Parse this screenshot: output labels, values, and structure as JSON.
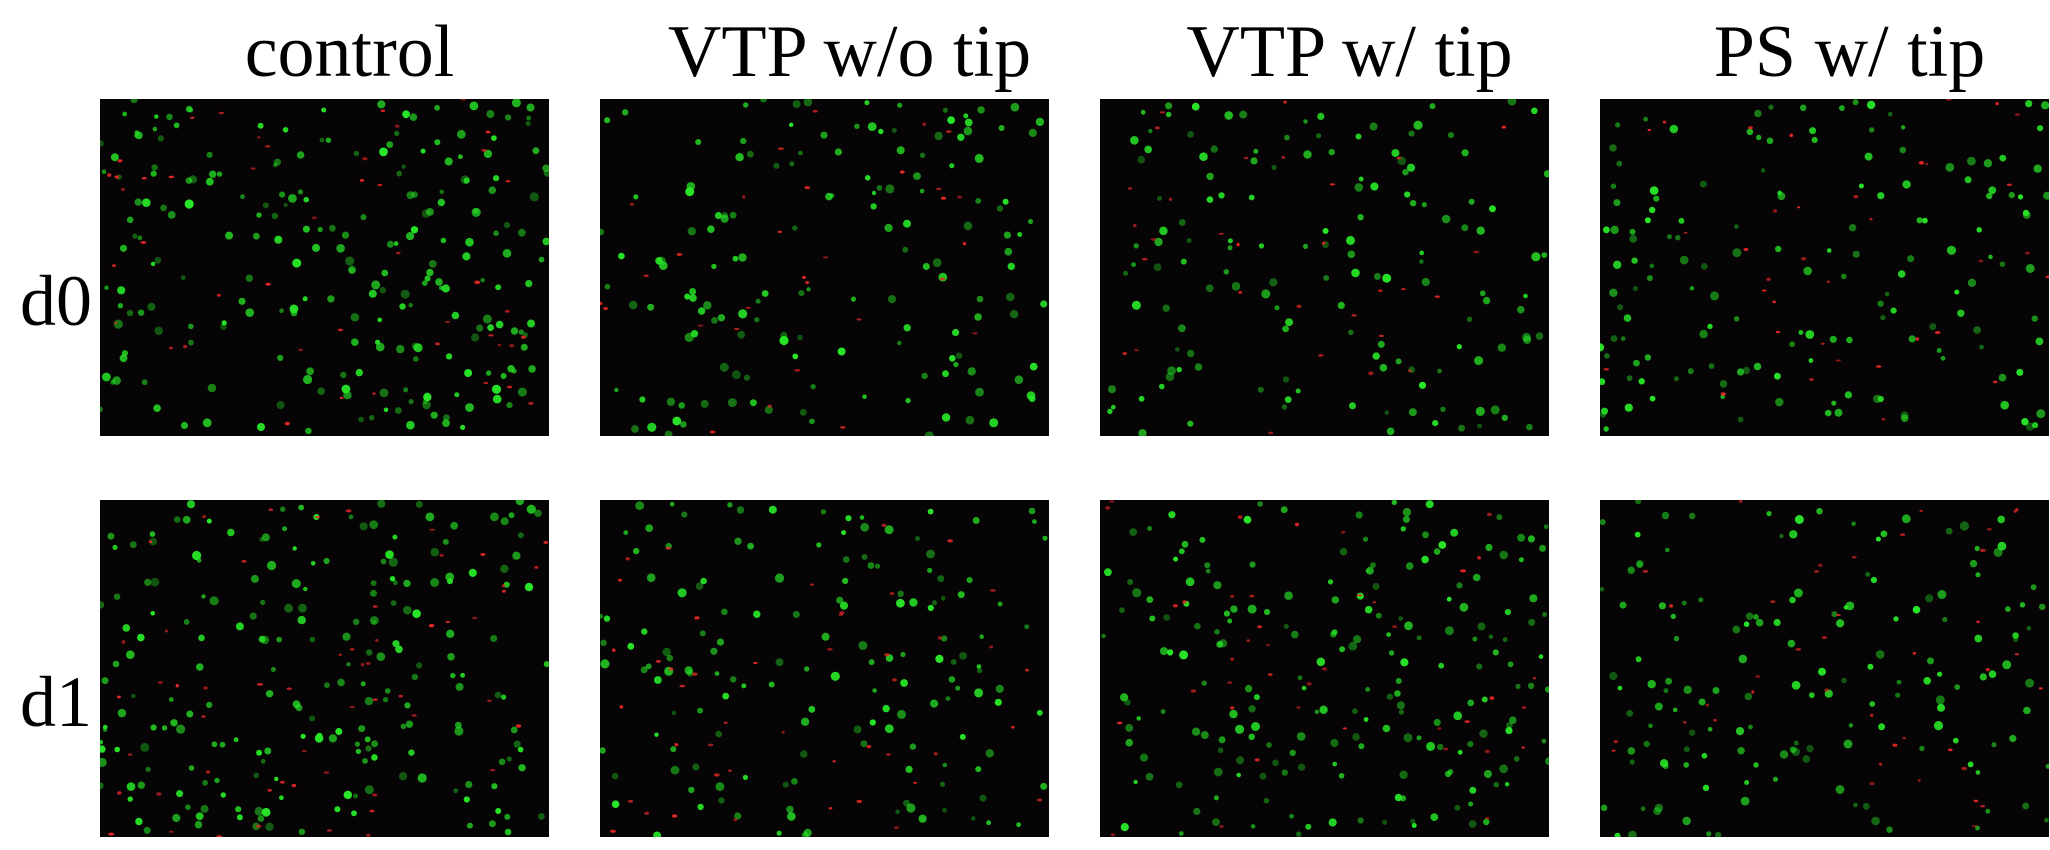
{
  "figure": {
    "columns": [
      {
        "label": "control"
      },
      {
        "label": "VTP w/o tip"
      },
      {
        "label": "VTP w/ tip"
      },
      {
        "label": "PS w/ tip"
      }
    ],
    "rows": [
      {
        "label": "d0"
      },
      {
        "label": "d1"
      }
    ]
  },
  "stain_colors": {
    "live": "#28e628",
    "dead": "#e62828",
    "background": "#060404"
  }
}
